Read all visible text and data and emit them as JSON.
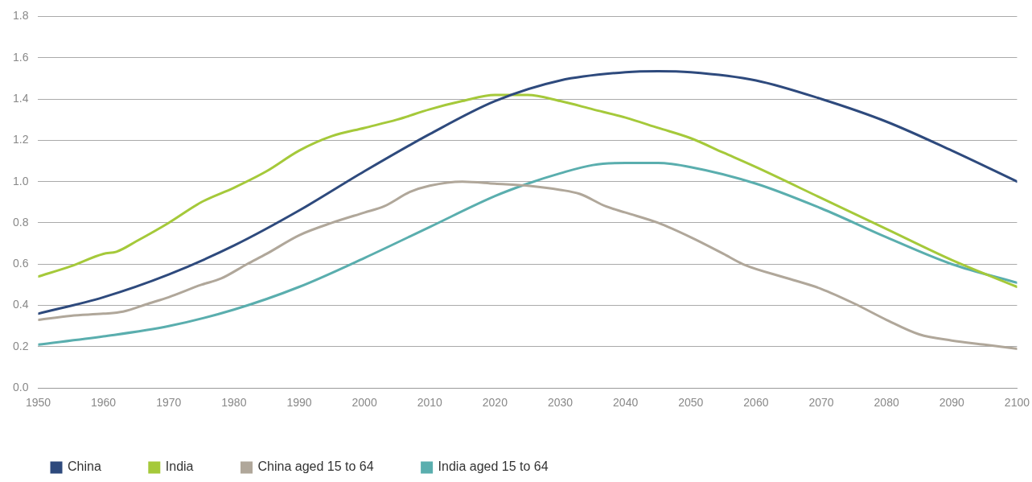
{
  "chart_data": {
    "type": "line",
    "xlim": [
      1950,
      2100
    ],
    "xticks": [
      1950,
      1960,
      1970,
      1980,
      1990,
      2000,
      2010,
      2020,
      2030,
      2040,
      2050,
      2060,
      2070,
      2080,
      2090,
      2100
    ],
    "ylim": [
      0,
      1.8
    ],
    "yticks": [
      {
        "value": 0,
        "label": "0.0"
      },
      {
        "value": 0.2,
        "label": "0.2"
      },
      {
        "value": 0.4,
        "label": "0.4"
      },
      {
        "value": 0.6,
        "label": "0.6"
      },
      {
        "value": 0.8,
        "label": "0.8"
      },
      {
        "value": 1,
        "label": "1.0"
      },
      {
        "value": 1.2,
        "label": "1.2"
      },
      {
        "value": 1.4,
        "label": "1.4"
      },
      {
        "value": 1.6,
        "label": "1.6"
      },
      {
        "value": 1.8,
        "label": "1.8"
      }
    ],
    "grid": "y",
    "legend": "bottom left",
    "marker": "none",
    "line_style": "solid",
    "series": [
      {
        "name": "China",
        "color": "#2e4a7d",
        "x": [
          1950,
          1960,
          1970,
          1980,
          1990,
          2000,
          2010,
          2020,
          2030,
          2040,
          2045,
          2050,
          2060,
          2070,
          2080,
          2090,
          2100
        ],
        "values": [
          0.36,
          0.44,
          0.55,
          0.69,
          0.86,
          1.05,
          1.23,
          1.39,
          1.49,
          1.53,
          1.535,
          1.53,
          1.49,
          1.4,
          1.29,
          1.15,
          1.0
        ]
      },
      {
        "name": "India",
        "color": "#a5c93a",
        "x": [
          1950,
          1955,
          1960,
          1962,
          1965,
          1970,
          1975,
          1980,
          1985,
          1990,
          1995,
          2000,
          2005,
          2010,
          2015,
          2020,
          2025,
          2030,
          2035,
          2040,
          2045,
          2050,
          2055,
          2060,
          2070,
          2080,
          2090,
          2100
        ],
        "values": [
          0.54,
          0.59,
          0.65,
          0.66,
          0.71,
          0.8,
          0.9,
          0.97,
          1.05,
          1.15,
          1.22,
          1.26,
          1.3,
          1.35,
          1.39,
          1.42,
          1.42,
          1.39,
          1.35,
          1.31,
          1.26,
          1.21,
          1.14,
          1.07,
          0.92,
          0.77,
          0.62,
          0.49
        ]
      },
      {
        "name": "China aged 15 to 64",
        "color": "#b0a79a",
        "x": [
          1950,
          1955,
          1960,
          1963,
          1967,
          1970,
          1975,
          1978,
          1982,
          1985,
          1990,
          1995,
          2000,
          2003,
          2007,
          2010,
          2015,
          2020,
          2025,
          2030,
          2033,
          2037,
          2040,
          2045,
          2050,
          2055,
          2058,
          2065,
          2070,
          2075,
          2080,
          2085,
          2090,
          2095,
          2100
        ],
        "values": [
          0.33,
          0.35,
          0.36,
          0.37,
          0.41,
          0.44,
          0.5,
          0.53,
          0.6,
          0.65,
          0.74,
          0.8,
          0.85,
          0.88,
          0.95,
          0.98,
          1.0,
          0.99,
          0.98,
          0.96,
          0.94,
          0.88,
          0.85,
          0.8,
          0.73,
          0.65,
          0.6,
          0.53,
          0.48,
          0.41,
          0.33,
          0.26,
          0.23,
          0.21,
          0.19
        ]
      },
      {
        "name": "India aged 15 to 64",
        "color": "#5aaeae",
        "x": [
          1950,
          1960,
          1970,
          1980,
          1990,
          2000,
          2010,
          2020,
          2025,
          2030,
          2035,
          2040,
          2045,
          2050,
          2060,
          2070,
          2080,
          2090,
          2100
        ],
        "values": [
          0.21,
          0.25,
          0.3,
          0.38,
          0.49,
          0.63,
          0.78,
          0.93,
          0.99,
          1.04,
          1.08,
          1.09,
          1.09,
          1.07,
          0.99,
          0.87,
          0.73,
          0.6,
          0.51
        ]
      }
    ]
  }
}
